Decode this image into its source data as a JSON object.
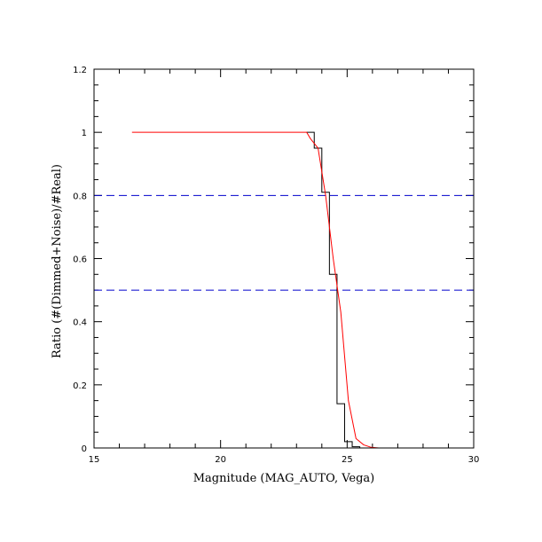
{
  "chart_data": {
    "type": "line",
    "title": "",
    "xlabel": "Magnitude (MAG_AUTO, Vega)",
    "ylabel": "Ratio (#(Dimmed+Noise)/#Real)",
    "xlim": [
      15,
      30
    ],
    "ylim": [
      0,
      1.2
    ],
    "xticks": [
      15,
      20,
      25,
      30
    ],
    "yticks": [
      0,
      0.2,
      0.4,
      0.6,
      0.8,
      1,
      1.2
    ],
    "xtick_labels": [
      "15",
      "20",
      "25",
      "30"
    ],
    "ytick_labels": [
      "0",
      "0.2",
      "0.4",
      "0.6",
      "0.8",
      "1",
      "1.2"
    ],
    "x_minor_step": 1,
    "y_minor_step": 0.05,
    "grid": false,
    "legend": "none",
    "series": [
      {
        "style": "step",
        "color": "#000000",
        "x": [
          23.4,
          23.7,
          24.0,
          24.3,
          24.6,
          24.9,
          25.2,
          25.5,
          25.8,
          26.1,
          26.4,
          30.0
        ],
        "values": [
          1.0,
          0.95,
          0.81,
          0.55,
          0.14,
          0.02,
          0.004,
          0.0,
          0.0,
          0.0,
          0.0,
          0.0
        ]
      },
      {
        "style": "line",
        "color": "#ff0000",
        "x": [
          16.5,
          23.4,
          23.55,
          23.85,
          24.15,
          24.45,
          24.75,
          25.05,
          25.35,
          25.65,
          25.95,
          26.25,
          26.55,
          30.0
        ],
        "values": [
          1.0,
          1.0,
          0.98,
          0.95,
          0.8,
          0.6,
          0.43,
          0.15,
          0.03,
          0.01,
          0.002,
          0.0,
          0.0,
          0.0
        ]
      }
    ],
    "reference_lines": [
      {
        "y": 0.8,
        "color": "#0000cc",
        "dash": "dashed"
      },
      {
        "y": 0.5,
        "color": "#0000cc",
        "dash": "dashed"
      }
    ]
  }
}
